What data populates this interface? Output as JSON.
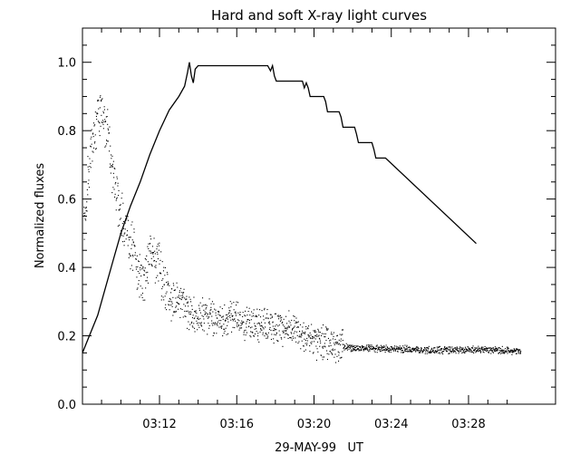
{
  "chart_data": {
    "type": "line",
    "title": "Hard and soft X-ray light curves",
    "xlabel": "29-MAY-99   UT",
    "ylabel": "Normalized fluxes",
    "xlim_min": [
      3.0,
      11.0
    ],
    "xlim_min_note": "x values are minutes after 03:00 UT",
    "ylim": [
      0.0,
      1.1
    ],
    "x_ticks": [
      {
        "value": 12,
        "label": "03:12"
      },
      {
        "value": 16,
        "label": "03:16"
      },
      {
        "value": 20,
        "label": "03:20"
      },
      {
        "value": 24,
        "label": "03:24"
      },
      {
        "value": 28,
        "label": "03:28"
      }
    ],
    "y_ticks": [
      {
        "value": 0.0,
        "label": "0.0"
      },
      {
        "value": 0.2,
        "label": "0.2"
      },
      {
        "value": 0.4,
        "label": "0.4"
      },
      {
        "value": 0.6,
        "label": "0.6"
      },
      {
        "value": 0.8,
        "label": "0.8"
      },
      {
        "value": 1.0,
        "label": "1.0"
      }
    ],
    "grid": false,
    "series": [
      {
        "kind": "line",
        "x": [
          7.9,
          8.3,
          8.8,
          9.2,
          9.6,
          10.0,
          10.5,
          11.0,
          11.5,
          12.0,
          12.5,
          13.0,
          13.3,
          13.45,
          13.55,
          13.65,
          13.75,
          13.85,
          14.0,
          15.0,
          16.0,
          17.0,
          17.6,
          17.75,
          17.85,
          17.95,
          18.05,
          18.3,
          19.0,
          19.4,
          19.5,
          19.6,
          19.7,
          19.8,
          20.5,
          20.6,
          20.7,
          21.3,
          21.4,
          21.5,
          22.1,
          22.2,
          22.3,
          23.0,
          23.1,
          23.2,
          23.7,
          28.4
        ],
        "y": [
          0.15,
          0.19,
          0.26,
          0.34,
          0.42,
          0.5,
          0.58,
          0.65,
          0.73,
          0.8,
          0.86,
          0.9,
          0.93,
          0.97,
          1.0,
          0.96,
          0.94,
          0.98,
          0.99,
          0.99,
          0.99,
          0.99,
          0.99,
          0.975,
          0.99,
          0.96,
          0.945,
          0.945,
          0.945,
          0.945,
          0.925,
          0.94,
          0.925,
          0.9,
          0.9,
          0.885,
          0.855,
          0.855,
          0.84,
          0.81,
          0.81,
          0.79,
          0.765,
          0.765,
          0.745,
          0.72,
          0.72,
          0.47
        ]
      },
      {
        "kind": "scatter",
        "envelope_x": [
          7.9,
          8.1,
          8.3,
          8.6,
          8.9,
          9.2,
          9.5,
          9.8,
          10.1,
          10.4,
          10.7,
          10.9,
          11.2,
          11.5,
          11.9,
          12.2,
          12.6,
          13.0,
          13.5,
          14.0,
          15.0,
          16.0,
          17.0,
          18.0,
          19.0,
          19.5,
          20.0,
          20.5,
          21.0,
          21.3,
          22.0,
          23.0,
          24.0,
          25.0,
          26.0,
          27.0,
          28.0,
          29.0,
          30.0,
          30.7
        ],
        "envelope_y": [
          0.45,
          0.55,
          0.68,
          0.8,
          0.87,
          0.82,
          0.7,
          0.6,
          0.53,
          0.48,
          0.45,
          0.38,
          0.36,
          0.46,
          0.42,
          0.35,
          0.3,
          0.3,
          0.27,
          0.26,
          0.25,
          0.245,
          0.24,
          0.23,
          0.22,
          0.2,
          0.19,
          0.185,
          0.18,
          0.17,
          0.165,
          0.165,
          0.162,
          0.162,
          0.16,
          0.16,
          0.16,
          0.16,
          0.158,
          0.157
        ]
      }
    ]
  }
}
